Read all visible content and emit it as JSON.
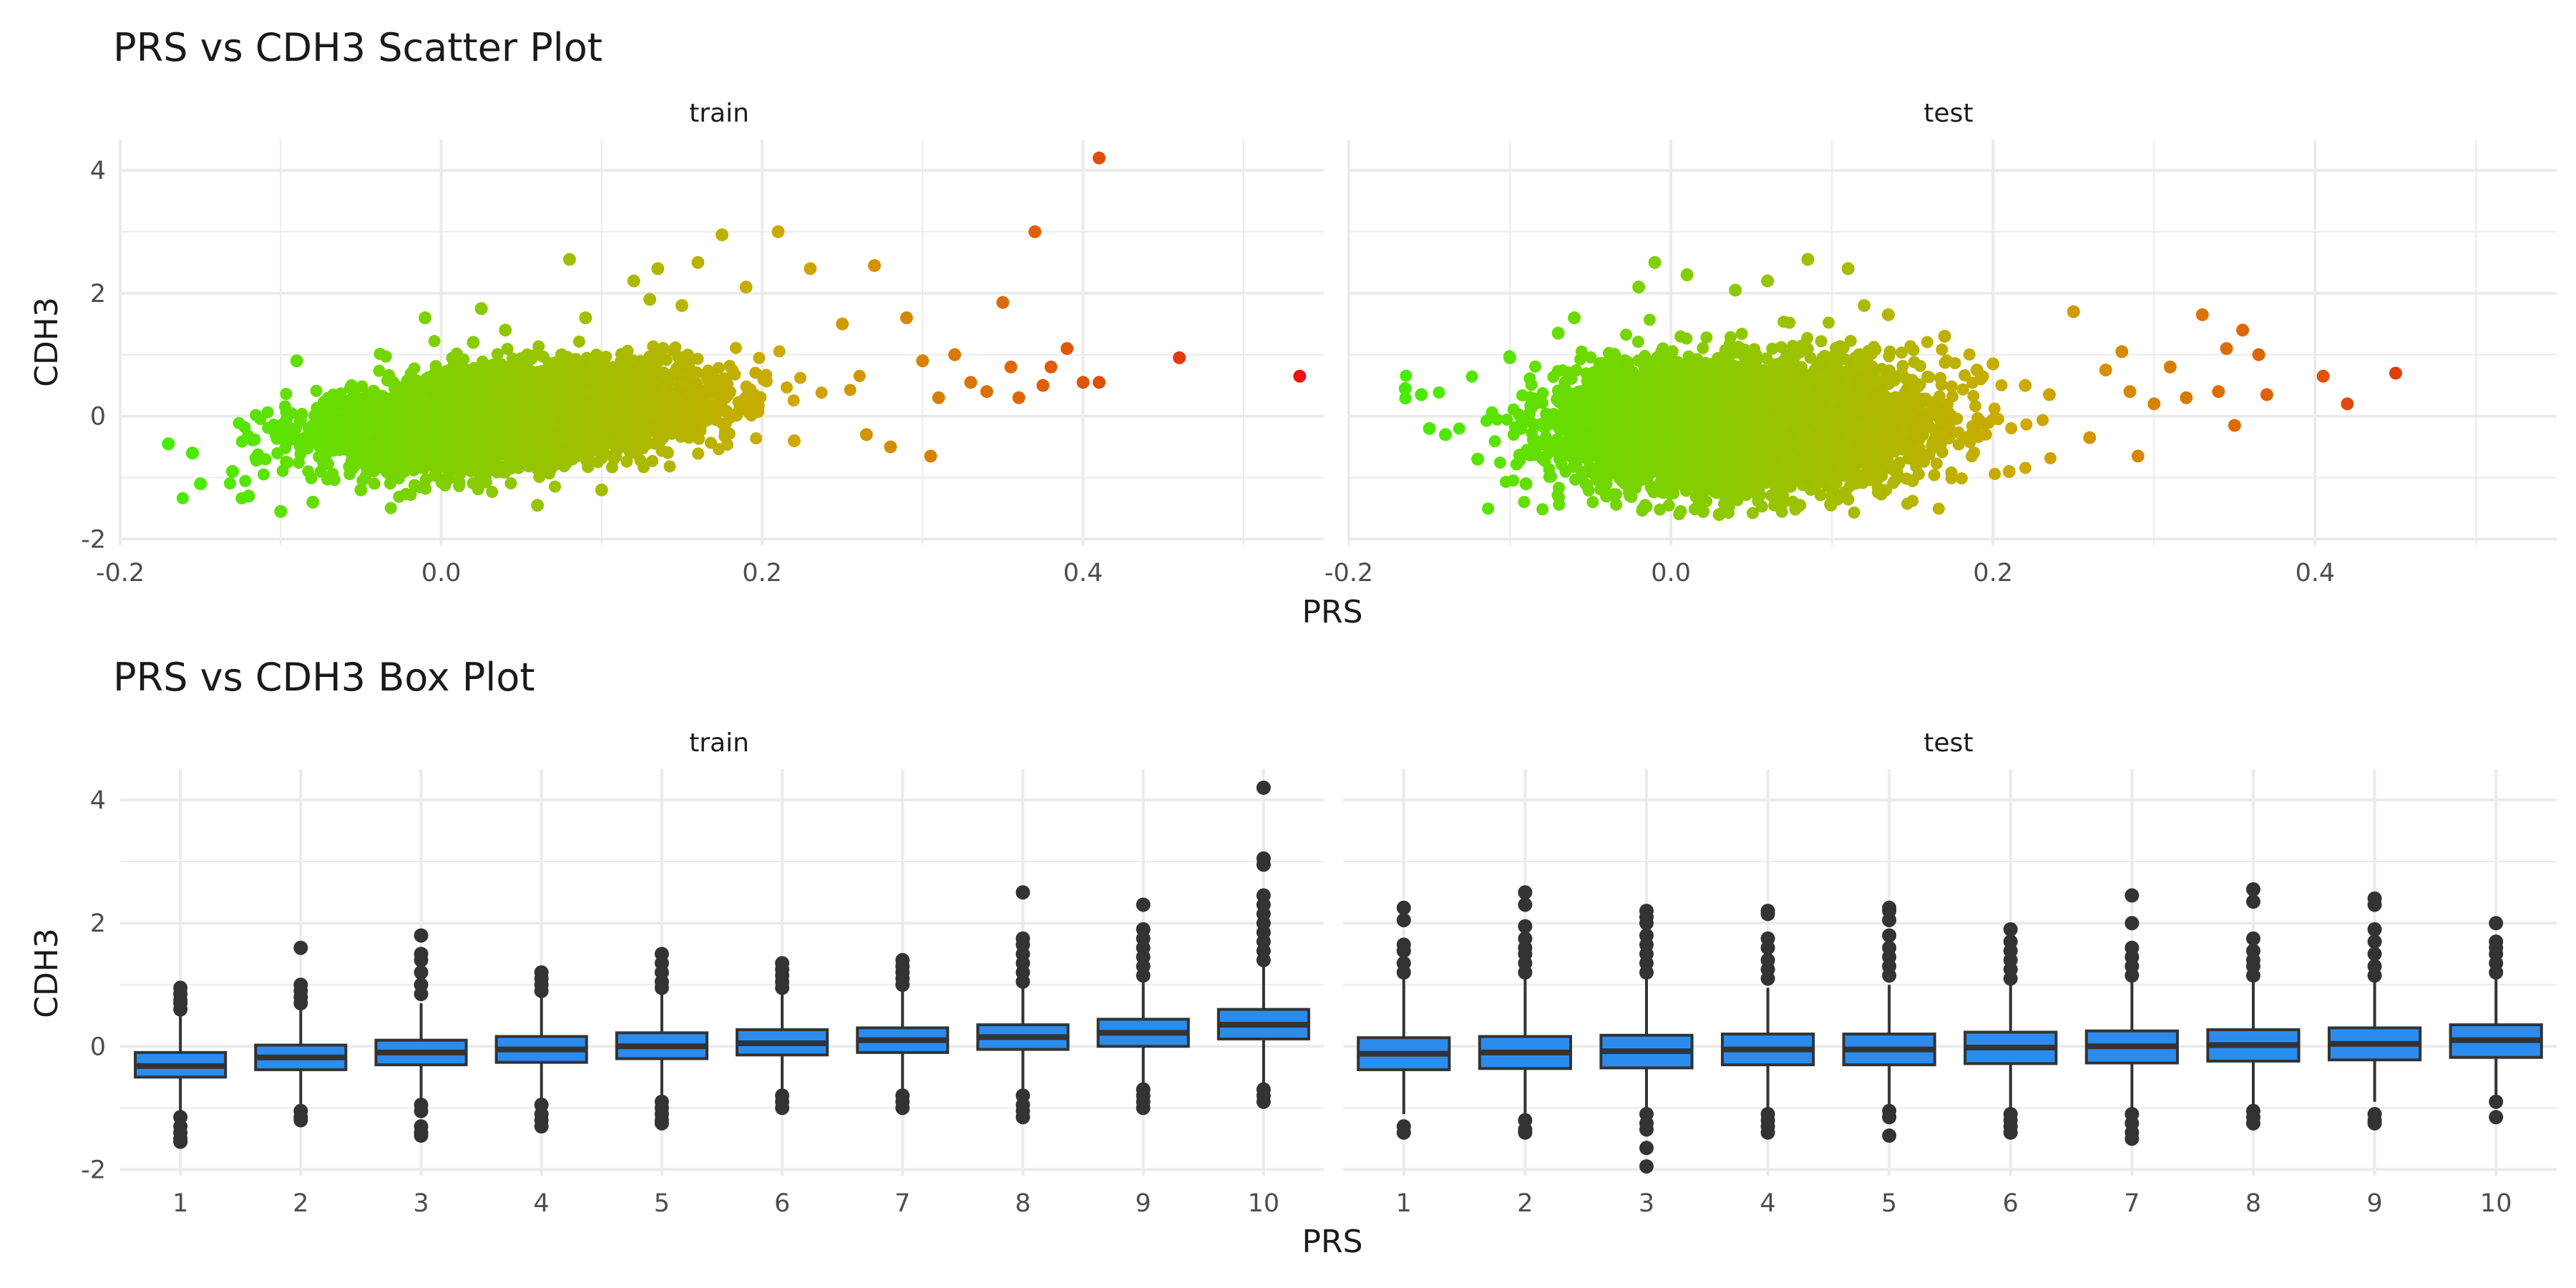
{
  "chart_data": [
    {
      "type": "scatter",
      "title": "PRS vs CDH3 Scatter Plot",
      "xlabel": "PRS",
      "ylabel": "CDH3",
      "xlim": [
        -0.2,
        0.55
      ],
      "ylim": [
        -2.1,
        4.5
      ],
      "x_ticks": [
        "-0.2",
        "0.0",
        "0.2",
        "0.4"
      ],
      "y_ticks": [
        "-2",
        "0",
        "2",
        "4"
      ],
      "grid": true,
      "color_gradient": {
        "low": "#44ee00",
        "mid": "#cfa800",
        "high": "#ee1111"
      },
      "facets": [
        {
          "name": "train",
          "points": [
            [
              -0.17,
              -0.45
            ],
            [
              -0.155,
              -0.6
            ],
            [
              -0.15,
              -1.1
            ],
            [
              -0.13,
              -0.9
            ],
            [
              -0.12,
              -1.3
            ],
            [
              -0.1,
              -1.55
            ],
            [
              -0.09,
              0.9
            ],
            [
              -0.08,
              -1.4
            ],
            [
              -0.05,
              -1.2
            ],
            [
              -0.03,
              0.55
            ],
            [
              -0.01,
              1.6
            ],
            [
              0.02,
              1.2
            ],
            [
              0.025,
              1.75
            ],
            [
              0.04,
              1.4
            ],
            [
              0.06,
              -1.45
            ],
            [
              0.08,
              2.55
            ],
            [
              0.09,
              1.6
            ],
            [
              0.1,
              -1.2
            ],
            [
              0.12,
              2.2
            ],
            [
              0.13,
              1.9
            ],
            [
              0.135,
              2.4
            ],
            [
              0.15,
              1.8
            ],
            [
              0.16,
              2.5
            ],
            [
              0.175,
              2.95
            ],
            [
              0.19,
              2.1
            ],
            [
              0.21,
              3.0
            ],
            [
              0.22,
              -0.4
            ],
            [
              0.23,
              2.4
            ],
            [
              0.25,
              1.5
            ],
            [
              0.265,
              -0.3
            ],
            [
              0.27,
              2.45
            ],
            [
              0.28,
              -0.5
            ],
            [
              0.29,
              1.6
            ],
            [
              0.3,
              0.9
            ],
            [
              0.305,
              -0.65
            ],
            [
              0.31,
              0.3
            ],
            [
              0.32,
              1.0
            ],
            [
              0.33,
              0.55
            ],
            [
              0.34,
              0.4
            ],
            [
              0.35,
              1.85
            ],
            [
              0.355,
              0.8
            ],
            [
              0.36,
              0.3
            ],
            [
              0.37,
              3.0
            ],
            [
              0.375,
              0.5
            ],
            [
              0.38,
              0.8
            ],
            [
              0.39,
              1.1
            ],
            [
              0.4,
              0.55
            ],
            [
              0.41,
              4.2
            ],
            [
              0.41,
              0.55
            ],
            [
              0.46,
              0.95
            ],
            [
              0.535,
              0.65
            ]
          ]
        },
        {
          "name": "test",
          "points": [
            [
              -0.165,
              0.45
            ],
            [
              -0.155,
              0.35
            ],
            [
              -0.15,
              -0.2
            ],
            [
              -0.14,
              -0.3
            ],
            [
              -0.12,
              -0.7
            ],
            [
              -0.1,
              0.95
            ],
            [
              -0.09,
              -1.1
            ],
            [
              -0.07,
              1.35
            ],
            [
              -0.06,
              1.6
            ],
            [
              -0.04,
              -1.3
            ],
            [
              -0.02,
              2.1
            ],
            [
              -0.01,
              2.5
            ],
            [
              0.01,
              2.3
            ],
            [
              0.02,
              -1.55
            ],
            [
              0.03,
              -1.6
            ],
            [
              0.04,
              2.05
            ],
            [
              0.06,
              2.2
            ],
            [
              0.08,
              -1.45
            ],
            [
              0.085,
              2.55
            ],
            [
              0.1,
              -1.3
            ],
            [
              0.11,
              2.4
            ],
            [
              0.12,
              1.8
            ],
            [
              0.135,
              1.65
            ],
            [
              0.15,
              -1.05
            ],
            [
              0.17,
              1.3
            ],
            [
              0.19,
              0.75
            ],
            [
              0.2,
              0.85
            ],
            [
              0.21,
              -0.9
            ],
            [
              0.22,
              0.5
            ],
            [
              0.235,
              0.35
            ],
            [
              0.25,
              1.7
            ],
            [
              0.26,
              -0.35
            ],
            [
              0.27,
              0.75
            ],
            [
              0.28,
              1.05
            ],
            [
              0.285,
              0.4
            ],
            [
              0.29,
              -0.65
            ],
            [
              0.3,
              0.2
            ],
            [
              0.31,
              0.8
            ],
            [
              0.32,
              0.3
            ],
            [
              0.33,
              1.65
            ],
            [
              0.34,
              0.4
            ],
            [
              0.345,
              1.1
            ],
            [
              0.35,
              -0.15
            ],
            [
              0.355,
              1.4
            ],
            [
              0.365,
              1.0
            ],
            [
              0.37,
              0.35
            ],
            [
              0.405,
              0.65
            ],
            [
              0.42,
              0.2
            ],
            [
              0.45,
              0.7
            ]
          ]
        }
      ]
    },
    {
      "type": "box",
      "title": "PRS vs CDH3 Box Plot",
      "xlabel": "PRS",
      "ylabel": "CDH3",
      "ylim": [
        -2.1,
        4.5
      ],
      "categories": [
        "1",
        "2",
        "3",
        "4",
        "5",
        "6",
        "7",
        "8",
        "9",
        "10"
      ],
      "y_ticks": [
        "-2",
        "0",
        "2",
        "4"
      ],
      "grid": true,
      "box_color": "#2b8cee",
      "facets": [
        {
          "name": "train",
          "boxes": [
            {
              "q1": -0.5,
              "median": -0.32,
              "q3": -0.1,
              "low": -1.05,
              "high": 0.5,
              "out": [
                0.6,
                0.7,
                0.75,
                0.85,
                0.95,
                -1.15,
                -1.3,
                -1.4,
                -1.5,
                -1.55
              ]
            },
            {
              "q1": -0.38,
              "median": -0.18,
              "q3": 0.02,
              "low": -0.95,
              "high": 0.6,
              "out": [
                0.7,
                0.8,
                0.9,
                1.0,
                1.6,
                -1.05,
                -1.15,
                -1.2
              ]
            },
            {
              "q1": -0.3,
              "median": -0.1,
              "q3": 0.1,
              "low": -0.85,
              "high": 0.7,
              "out": [
                0.85,
                1.0,
                1.2,
                1.4,
                1.5,
                1.8,
                -0.95,
                -1.05,
                -1.3,
                -1.4,
                -1.45
              ]
            },
            {
              "q1": -0.26,
              "median": -0.05,
              "q3": 0.16,
              "low": -0.85,
              "high": 0.8,
              "out": [
                0.9,
                1.0,
                1.1,
                1.2,
                -0.95,
                -1.1,
                -1.2,
                -1.3
              ]
            },
            {
              "q1": -0.2,
              "median": 0.0,
              "q3": 0.22,
              "low": -0.8,
              "high": 0.85,
              "out": [
                0.95,
                1.05,
                1.2,
                1.35,
                1.5,
                -0.9,
                -1.0,
                -1.1,
                -1.2,
                -1.25
              ]
            },
            {
              "q1": -0.14,
              "median": 0.05,
              "q3": 0.27,
              "low": -0.7,
              "high": 0.85,
              "out": [
                0.95,
                1.05,
                1.15,
                1.25,
                1.35,
                -0.8,
                -0.9,
                -1.0
              ]
            },
            {
              "q1": -0.1,
              "median": 0.1,
              "q3": 0.3,
              "low": -0.7,
              "high": 0.9,
              "out": [
                1.0,
                1.1,
                1.2,
                1.3,
                1.4,
                -0.8,
                -0.9,
                -1.0
              ]
            },
            {
              "q1": -0.05,
              "median": 0.15,
              "q3": 0.35,
              "low": -0.7,
              "high": 0.95,
              "out": [
                1.05,
                1.2,
                1.35,
                1.5,
                1.65,
                1.75,
                2.5,
                -0.8,
                -0.95,
                -1.05,
                -1.15
              ]
            },
            {
              "q1": 0.0,
              "median": 0.22,
              "q3": 0.44,
              "low": -0.6,
              "high": 1.05,
              "out": [
                1.15,
                1.3,
                1.45,
                1.6,
                1.75,
                1.9,
                2.3,
                -0.7,
                -0.8,
                -0.9,
                -1.0
              ]
            },
            {
              "q1": 0.12,
              "median": 0.35,
              "q3": 0.6,
              "low": -0.6,
              "high": 1.3,
              "out": [
                1.4,
                1.55,
                1.7,
                1.85,
                2.0,
                2.15,
                2.3,
                2.45,
                2.95,
                3.05,
                4.2,
                -0.7,
                -0.8,
                -0.9
              ]
            }
          ]
        },
        {
          "name": "test",
          "boxes": [
            {
              "q1": -0.38,
              "median": -0.12,
              "q3": 0.14,
              "low": -1.1,
              "high": 1.1,
              "out": [
                1.2,
                1.35,
                1.55,
                1.65,
                2.05,
                2.25,
                -1.3,
                -1.4
              ]
            },
            {
              "q1": -0.36,
              "median": -0.1,
              "q3": 0.16,
              "low": -1.1,
              "high": 1.1,
              "out": [
                1.2,
                1.35,
                1.5,
                1.6,
                1.75,
                1.95,
                2.3,
                2.5,
                -1.2,
                -1.35,
                -1.4
              ]
            },
            {
              "q1": -0.35,
              "median": -0.08,
              "q3": 0.18,
              "low": -1.05,
              "high": 1.1,
              "out": [
                1.2,
                1.35,
                1.5,
                1.65,
                1.8,
                2.0,
                2.1,
                2.2,
                -1.1,
                -1.25,
                -1.35,
                -1.65,
                -1.95
              ]
            },
            {
              "q1": -0.3,
              "median": -0.05,
              "q3": 0.2,
              "low": -1.0,
              "high": 0.95,
              "out": [
                1.1,
                1.25,
                1.4,
                1.6,
                1.75,
                2.15,
                2.2,
                -1.1,
                -1.2,
                -1.3,
                -1.4
              ]
            },
            {
              "q1": -0.3,
              "median": -0.05,
              "q3": 0.2,
              "low": -1.0,
              "high": 1.0,
              "out": [
                1.15,
                1.3,
                1.45,
                1.6,
                1.8,
                2.05,
                2.2,
                2.25,
                -1.05,
                -1.15,
                -1.45
              ]
            },
            {
              "q1": -0.28,
              "median": -0.02,
              "q3": 0.23,
              "low": -1.0,
              "high": 1.0,
              "out": [
                1.1,
                1.25,
                1.4,
                1.55,
                1.7,
                1.9,
                -1.1,
                -1.2,
                -1.3,
                -1.4
              ]
            },
            {
              "q1": -0.27,
              "median": 0.0,
              "q3": 0.25,
              "low": -1.0,
              "high": 1.05,
              "out": [
                1.15,
                1.3,
                1.45,
                1.6,
                2.0,
                2.45,
                -1.1,
                -1.25,
                -1.4,
                -1.5
              ]
            },
            {
              "q1": -0.24,
              "median": 0.02,
              "q3": 0.27,
              "low": -0.95,
              "high": 1.05,
              "out": [
                1.15,
                1.3,
                1.4,
                1.55,
                1.75,
                2.35,
                2.55,
                -1.05,
                -1.15,
                -1.25
              ]
            },
            {
              "q1": -0.22,
              "median": 0.04,
              "q3": 0.3,
              "low": -0.9,
              "high": 1.05,
              "out": [
                1.15,
                1.3,
                1.5,
                1.7,
                1.9,
                2.3,
                2.4,
                -1.1,
                -1.2,
                -1.25
              ]
            },
            {
              "q1": -0.18,
              "median": 0.1,
              "q3": 0.35,
              "low": -0.85,
              "high": 1.1,
              "out": [
                1.2,
                1.35,
                1.5,
                1.6,
                1.7,
                2.0,
                -0.9,
                -1.15
              ]
            }
          ]
        }
      ]
    }
  ]
}
